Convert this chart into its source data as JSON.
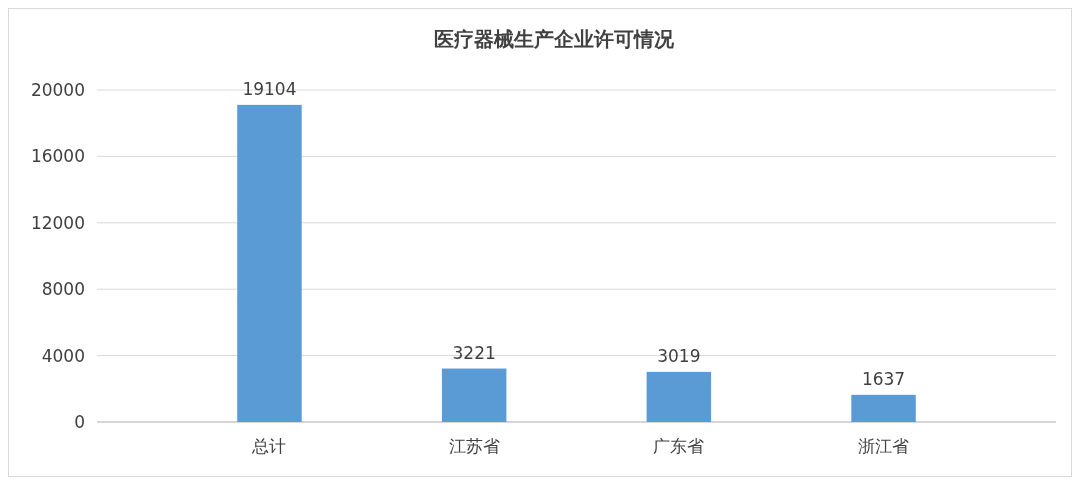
{
  "chart_data": {
    "type": "bar",
    "title": "医疗器械生产企业许可情况",
    "categories": [
      "总计",
      "江苏省",
      "广东省",
      "浙江省"
    ],
    "values": [
      19104,
      3221,
      3019,
      1637
    ],
    "color": "#5b9bd5",
    "ylim": [
      0,
      20000
    ],
    "yticks": [
      0,
      4000,
      8000,
      12000,
      16000,
      20000
    ],
    "grid": "y",
    "data_labels": true
  }
}
